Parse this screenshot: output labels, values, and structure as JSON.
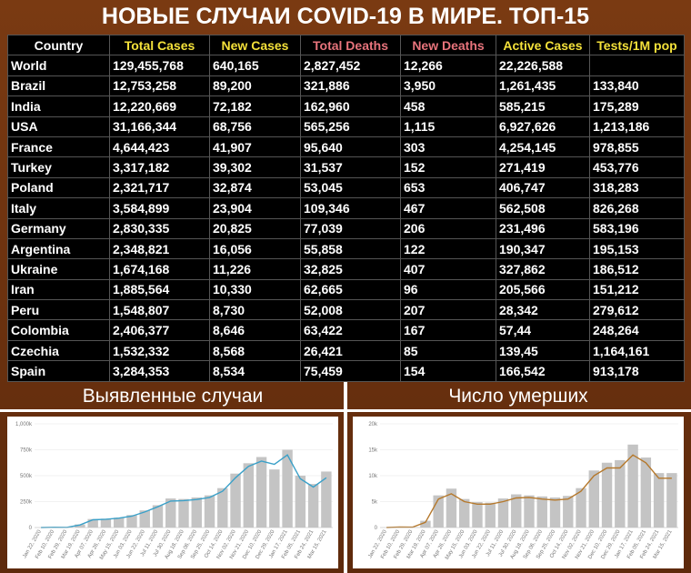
{
  "title": "НОВЫЕ СЛУЧАИ COVID-19 В МИРЕ. ТОП-15",
  "table": {
    "header": [
      "Country",
      "Total Cases",
      "New Cases",
      "Total Deaths",
      "New Deaths",
      "Active Cases",
      "Tests/1M pop"
    ],
    "rows": [
      [
        "World",
        "129,455,768",
        "640,165",
        "2,827,452",
        "12,266",
        "22,226,588",
        null
      ],
      [
        "Brazil",
        "12,753,258",
        "89,200",
        "321,886",
        "3,950",
        "1,261,435",
        "133,840"
      ],
      [
        "India",
        "12,220,669",
        "72,182",
        "162,960",
        "458",
        "585,215",
        "175,289"
      ],
      [
        "USA",
        "31,166,344",
        "68,756",
        "565,256",
        "1,115",
        "6,927,626",
        "1,213,186"
      ],
      [
        "France",
        "4,644,423",
        "41,907",
        "95,640",
        "303",
        "4,254,145",
        "978,855"
      ],
      [
        "Turkey",
        "3,317,182",
        "39,302",
        "31,537",
        "152",
        "271,419",
        "453,776"
      ],
      [
        "Poland",
        "2,321,717",
        "32,874",
        "53,045",
        "653",
        "406,747",
        "318,283"
      ],
      [
        "Italy",
        "3,584,899",
        "23,904",
        "109,346",
        "467",
        "562,508",
        "826,268"
      ],
      [
        "Germany",
        "2,830,335",
        "20,825",
        "77,039",
        "206",
        "231,496",
        "583,196"
      ],
      [
        "Argentina",
        "2,348,821",
        "16,056",
        "55,858",
        "122",
        "190,347",
        "195,153"
      ],
      [
        "Ukraine",
        "1,674,168",
        "11,226",
        "32,825",
        "407",
        "327,862",
        "186,512"
      ],
      [
        "Iran",
        "1,885,564",
        "10,330",
        "62,665",
        "96",
        "205,566",
        "151,212"
      ],
      [
        "Peru",
        "1,548,807",
        "8,730",
        "52,008",
        "207",
        "28,342",
        "279,612"
      ],
      [
        "Colombia",
        "2,406,377",
        "8,646",
        "63,422",
        "167",
        "57,44",
        "248,264"
      ],
      [
        "Czechia",
        "1,532,332",
        "8,568",
        "26,421",
        "85",
        "139,45",
        "1,164,161"
      ],
      [
        "Spain",
        "3,284,353",
        "8,534",
        "75,459",
        "154",
        "166,542",
        "913,178"
      ]
    ]
  },
  "chart_data": [
    {
      "type": "combo",
      "title": "Выявленные случаи",
      "categories": [
        "Jan 22, 2020",
        "Feb 10, 2020",
        "Feb 29, 2020",
        "Mar 19, 2020",
        "Apr 07, 2020",
        "Apr 26, 2020",
        "May 15, 2020",
        "Jun 03, 2020",
        "Jun 22, 2020",
        "Jul 11, 2020",
        "Jul 30, 2020",
        "Aug 18, 2020",
        "Sep 06, 2020",
        "Sep 25, 2020",
        "Oct 14, 2020",
        "Nov 02, 2020",
        "Nov 21, 2020",
        "Dec 10, 2020",
        "Dec 29, 2020",
        "Jan 17, 2021",
        "Feb 05, 2021",
        "Feb 24, 2021",
        "Mar 15, 2021"
      ],
      "series": [
        {
          "type": "bar",
          "color": "#c4c4c4",
          "values": [
            0,
            2500,
            1800,
            30000,
            82000,
            85000,
            95000,
            120000,
            165000,
            215000,
            280000,
            275000,
            290000,
            310000,
            380000,
            520000,
            620000,
            680000,
            560000,
            750000,
            500000,
            420000,
            540000
          ]
        },
        {
          "type": "line",
          "color": "#3aa0c8",
          "values": [
            0,
            3000,
            2000,
            25000,
            75000,
            80000,
            90000,
            110000,
            150000,
            200000,
            255000,
            260000,
            270000,
            290000,
            350000,
            480000,
            590000,
            640000,
            610000,
            700000,
            470000,
            390000,
            480000
          ]
        }
      ],
      "ylim": [
        0,
        1000000
      ],
      "yticks": [
        0,
        {
          "value": 250000,
          "label": "250k"
        },
        {
          "value": 500000,
          "label": "500k"
        },
        {
          "value": 750000,
          "label": "750k"
        },
        {
          "value": 1000000,
          "label": "1,000k"
        }
      ],
      "grid": true
    },
    {
      "type": "combo",
      "title": "Число умерших",
      "categories": [
        "Jan 22, 2020",
        "Feb 10, 2020",
        "Feb 29, 2020",
        "Mar 19, 2020",
        "Apr 07, 2020",
        "Apr 26, 2020",
        "May 15, 2020",
        "Jun 03, 2020",
        "Jun 22, 2020",
        "Jul 11, 2020",
        "Jul 30, 2020",
        "Aug 18, 2020",
        "Sep 06, 2020",
        "Sep 25, 2020",
        "Oct 14, 2020",
        "Nov 02, 2020",
        "Nov 21, 2020",
        "Dec 10, 2020",
        "Dec 29, 2020",
        "Jan 17, 2021",
        "Feb 05, 2021",
        "Feb 24, 2021",
        "Mar 15, 2021"
      ],
      "series": [
        {
          "type": "bar",
          "color": "#c4c4c4",
          "values": [
            0,
            90,
            60,
            1300,
            6200,
            7500,
            5500,
            4900,
            4800,
            5600,
            6400,
            6200,
            6000,
            5800,
            6100,
            7600,
            11000,
            12500,
            13000,
            16000,
            13500,
            10500,
            10500
          ]
        },
        {
          "type": "line",
          "color": "#b5782b",
          "values": [
            0,
            100,
            70,
            1000,
            5500,
            6500,
            5000,
            4500,
            4500,
            5000,
            5700,
            5800,
            5500,
            5300,
            5500,
            7000,
            10000,
            11500,
            11500,
            14000,
            12500,
            9500,
            9500
          ]
        }
      ],
      "ylim": [
        0,
        20000
      ],
      "yticks": [
        0,
        {
          "value": 5000,
          "label": "5k"
        },
        {
          "value": 10000,
          "label": "10k"
        },
        {
          "value": 15000,
          "label": "15k"
        },
        {
          "value": 20000,
          "label": "20k"
        }
      ],
      "grid": true
    }
  ]
}
